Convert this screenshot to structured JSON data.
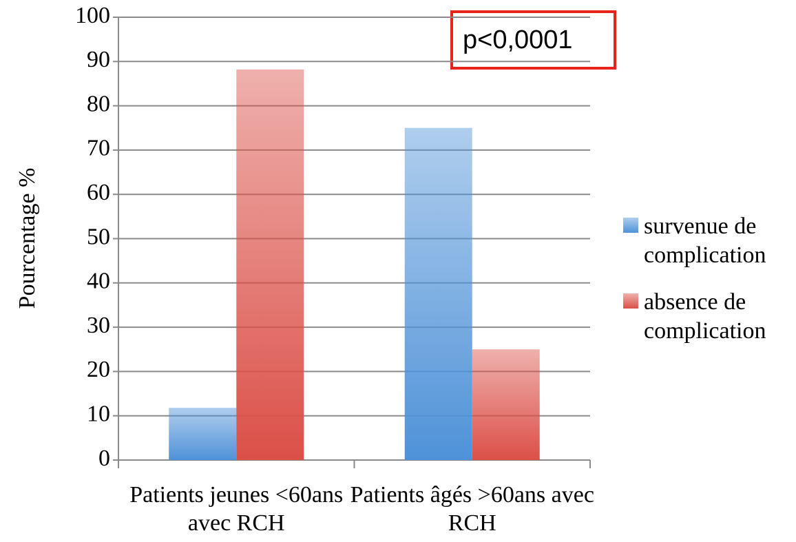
{
  "chart_data": {
    "type": "bar",
    "y_label": "Pourcentage %",
    "annotation": "p<0,0001",
    "categories": [
      "Patients jeunes <60ans avec RCH",
      "Patients âgés >60ans avec RCH"
    ],
    "series": [
      {
        "name": "survenue de complication",
        "color": "#4f92d8",
        "values": [
          11.8,
          75
        ]
      },
      {
        "name": "absence de complication",
        "color": "#db5048",
        "values": [
          88.2,
          25
        ]
      }
    ],
    "ylim": [
      0,
      100
    ],
    "yticks": [
      0,
      10,
      20,
      30,
      40,
      50,
      60,
      70,
      80,
      90,
      100
    ],
    "grid": true,
    "legend": "right"
  }
}
